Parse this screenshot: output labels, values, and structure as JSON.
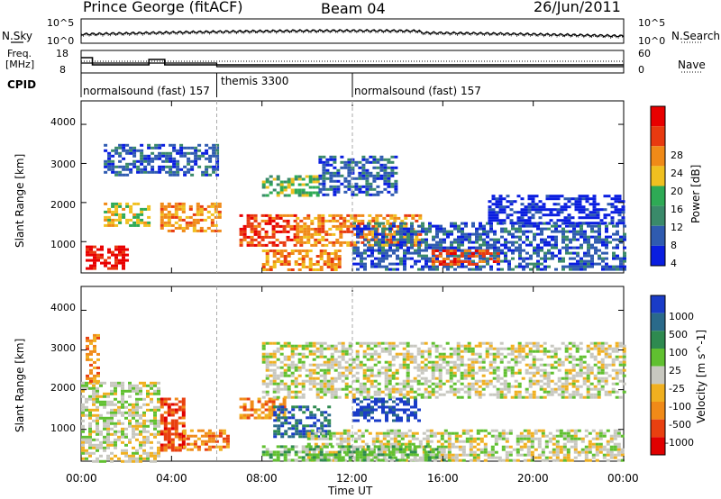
{
  "header": {
    "station": "Prince George (fitACF)",
    "beam": "Beam 04",
    "date": "26/Jun/2011"
  },
  "noise_panel": {
    "left_label": "N.Sky",
    "right_label": "N.Search",
    "left_ticks": [
      "10^5",
      "10^0"
    ],
    "right_ticks": [
      "10^5",
      "10^0"
    ]
  },
  "freq_panel": {
    "left_label_1": "Freq.",
    "left_label_2": "[MHz]",
    "right_label": "Nave",
    "left_ticks": [
      "18",
      "8"
    ],
    "right_ticks": [
      "60",
      "0"
    ]
  },
  "cpid_panel": {
    "label": "CPID",
    "modes": [
      {
        "name": "normalsound (fast) 157",
        "start": 0
      },
      {
        "name": "themis 3300",
        "start": 6
      },
      {
        "name": "normalsound (fast) 157",
        "start": 12
      }
    ]
  },
  "chart_data": [
    {
      "type": "heatmap",
      "quantity": "Power",
      "ylabel": "Slant Range [km]",
      "yticks": [
        "1000",
        "2000",
        "3000",
        "4000"
      ],
      "ylim": [
        200,
        4600
      ],
      "xlim": [
        0,
        24
      ],
      "colorbar_label": "Power [dB]",
      "colorbar_ticks": [
        "4",
        "8",
        "12",
        "16",
        "20",
        "24",
        "28"
      ],
      "colorbar_colors": [
        "#0a1ee0",
        "#2f5bb0",
        "#3a8a6a",
        "#2eaa55",
        "#f0c020",
        "#f08a18",
        "#e83a10",
        "#e80000"
      ],
      "blobs": [
        {
          "t0": 0.2,
          "t1": 2.0,
          "r0": 300,
          "r1": 900,
          "level": 7
        },
        {
          "t0": 1.0,
          "t1": 3.0,
          "r0": 1400,
          "r1": 2000,
          "level": 4
        },
        {
          "t0": 3.5,
          "t1": 6.2,
          "r0": 1300,
          "r1": 2000,
          "level": 5
        },
        {
          "t0": 7.0,
          "t1": 9.5,
          "r0": 900,
          "r1": 1700,
          "level": 6
        },
        {
          "t0": 8.0,
          "t1": 11.5,
          "r0": 300,
          "r1": 800,
          "level": 5
        },
        {
          "t0": 9.5,
          "t1": 15.0,
          "r0": 900,
          "r1": 1700,
          "level": 5
        },
        {
          "t0": 8.0,
          "t1": 10.5,
          "r0": 2200,
          "r1": 2700,
          "level": 3
        },
        {
          "t0": 1.0,
          "t1": 6.0,
          "r0": 2700,
          "r1": 3500,
          "level": 1
        },
        {
          "t0": 10.5,
          "t1": 14.0,
          "r0": 2200,
          "r1": 3200,
          "level": 1
        },
        {
          "t0": 12.0,
          "t1": 24.0,
          "r0": 300,
          "r1": 1500,
          "level": 1
        },
        {
          "t0": 15.5,
          "t1": 18.5,
          "r0": 400,
          "r1": 800,
          "level": 6
        },
        {
          "t0": 18.0,
          "t1": 24.0,
          "r0": 1500,
          "r1": 2200,
          "level": 0
        }
      ]
    },
    {
      "type": "heatmap",
      "quantity": "Velocity",
      "ylabel": "Slant Range [km]",
      "yticks": [
        "1000",
        "2000",
        "3000",
        "4000"
      ],
      "ylim": [
        200,
        4600
      ],
      "xlim": [
        0,
        24
      ],
      "xticks": [
        "00:00",
        "04:00",
        "08:00",
        "12:00",
        "16:00",
        "20:00",
        "00:00"
      ],
      "xlabel": "Time UT",
      "colorbar_label": "Velocity [m s^-1]",
      "colorbar_ticks": [
        "1000",
        "500",
        "100",
        "25",
        "-25",
        "-100",
        "-500",
        "-1000"
      ],
      "colorbar_colors": [
        "#1a3cc8",
        "#2a6a8a",
        "#2e8a50",
        "#60c030",
        "#c8c8c0",
        "#f0b020",
        "#f08a18",
        "#e84010",
        "#e00000"
      ],
      "blobs": [
        {
          "t0": 0.0,
          "t1": 3.5,
          "r0": 200,
          "r1": 2200,
          "level": 4
        },
        {
          "t0": 0.2,
          "t1": 0.7,
          "r0": 2200,
          "r1": 3400,
          "level": 6
        },
        {
          "t0": 3.5,
          "t1": 4.5,
          "r0": 500,
          "r1": 1800,
          "level": 7
        },
        {
          "t0": 4.5,
          "t1": 6.5,
          "r0": 500,
          "r1": 1000,
          "level": 6
        },
        {
          "t0": 7.0,
          "t1": 9.0,
          "r0": 1300,
          "r1": 1800,
          "level": 6
        },
        {
          "t0": 8.5,
          "t1": 11.0,
          "r0": 800,
          "r1": 1600,
          "level": 1
        },
        {
          "t0": 12.0,
          "t1": 15.0,
          "r0": 1200,
          "r1": 1800,
          "level": 0
        },
        {
          "t0": 10.0,
          "t1": 24.0,
          "r0": 200,
          "r1": 1000,
          "level": 4
        },
        {
          "t0": 8.0,
          "t1": 16.0,
          "r0": 200,
          "r1": 600,
          "level": 3
        },
        {
          "t0": 8.0,
          "t1": 24.0,
          "r0": 1800,
          "r1": 3200,
          "level": 4
        }
      ]
    }
  ]
}
